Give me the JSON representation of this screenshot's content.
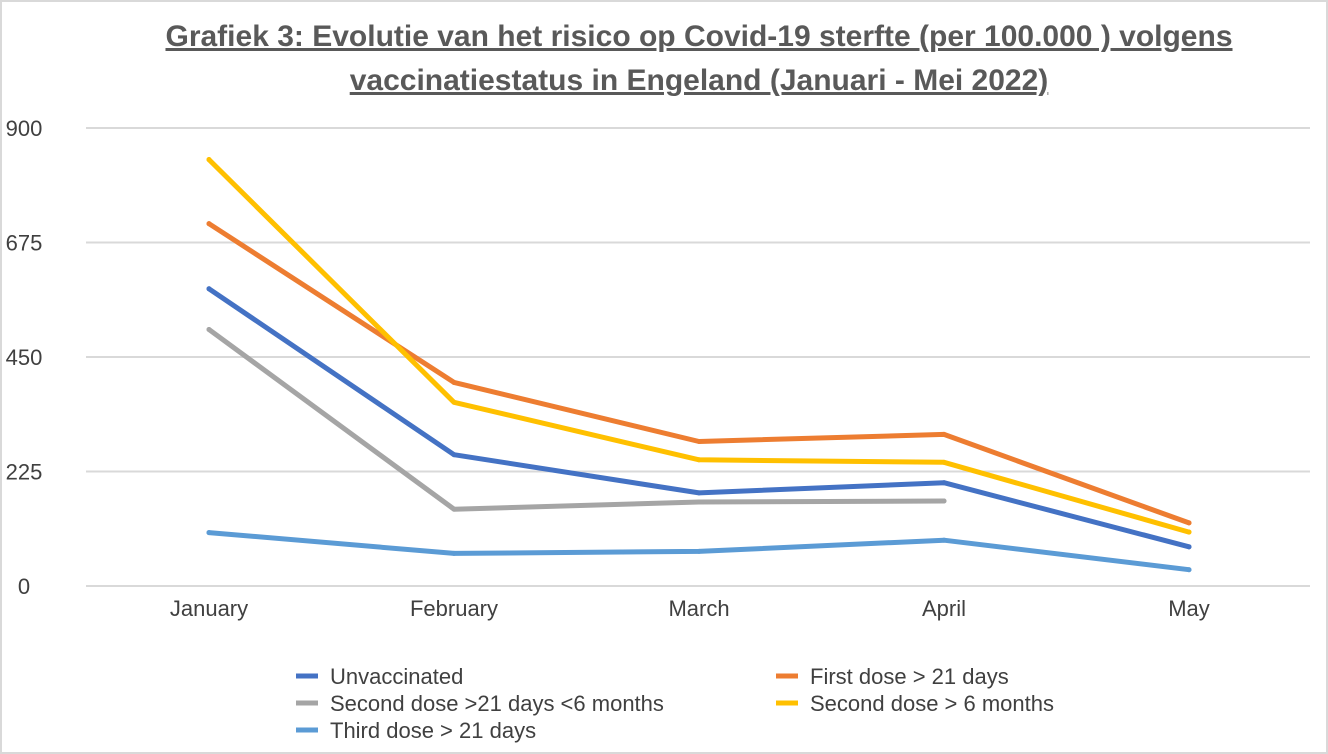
{
  "chart_data": {
    "type": "line",
    "title_lines": [
      "Grafiek 3: Evolutie van het risico op Covid-19 sterfte (per 100.000 ) volgens",
      "vaccinatiestatus in Engeland (Januari - Mei 2022)"
    ],
    "xlabel": "",
    "ylabel": "",
    "categories": [
      "January",
      "February",
      "March",
      "April",
      "May"
    ],
    "y_ticks": [
      "0",
      "225",
      "450",
      "675",
      "900"
    ],
    "ylim": [
      0,
      900
    ],
    "grid": true,
    "legend_position": "bottom",
    "series": [
      {
        "name": "Unvaccinated",
        "color": "#4472C4",
        "values": [
          584,
          258,
          183,
          203,
          77
        ]
      },
      {
        "name": "First dose > 21 days",
        "color": "#ED7D31",
        "values": [
          712,
          400,
          284,
          298,
          124
        ]
      },
      {
        "name": "Second dose >21 days <6 months",
        "color": "#A5A5A5",
        "values": [
          504,
          151,
          165,
          167,
          null
        ]
      },
      {
        "name": "Second dose > 6 months",
        "color": "#FFC000",
        "values": [
          838,
          361,
          248,
          243,
          106
        ]
      },
      {
        "name": "Third dose > 21 days",
        "color": "#5B9BD5",
        "values": [
          105,
          64,
          68,
          90,
          32
        ]
      }
    ]
  }
}
